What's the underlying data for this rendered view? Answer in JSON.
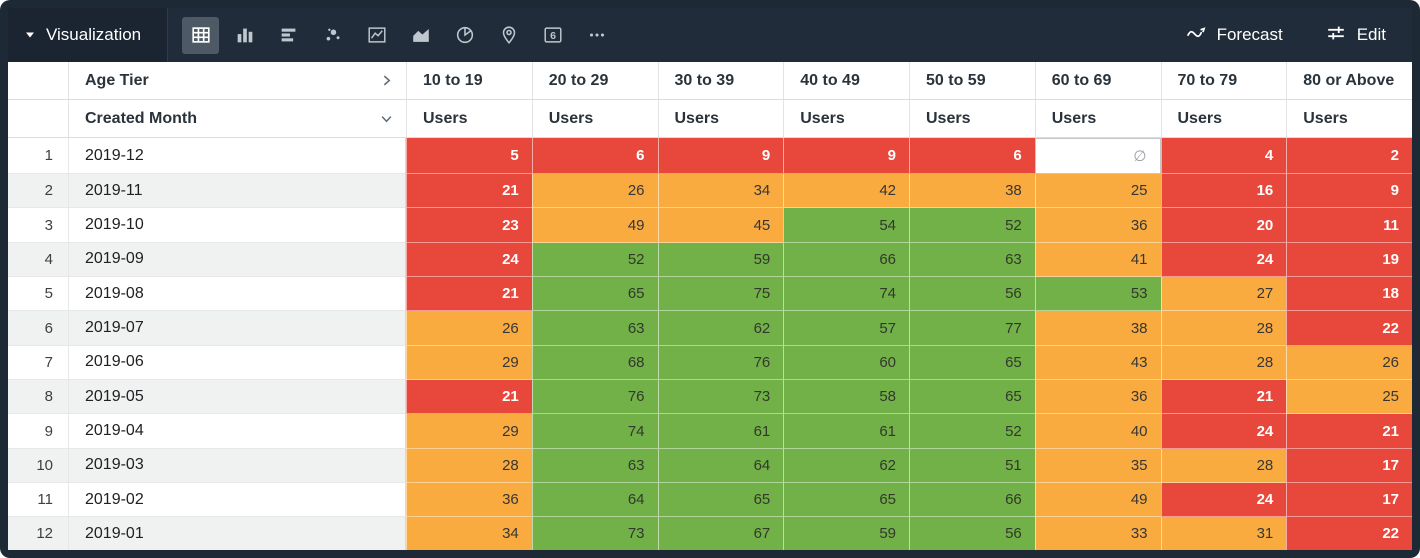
{
  "topbar": {
    "title": "Visualization",
    "forecast_label": "Forecast",
    "edit_label": "Edit",
    "single_value_glyph": "6",
    "viz_types": [
      "table",
      "column",
      "bar",
      "scatterplot",
      "line",
      "area",
      "pie",
      "map",
      "single-value",
      "more"
    ],
    "selected_viz": "table"
  },
  "colors": {
    "red": "#e8483b",
    "orange": "#f9ab40",
    "green": "#72b048",
    "topbar_bg": "#202c39",
    "selected_icon_bg": "#4d5965"
  },
  "table": {
    "pivot_field": "Age Tier",
    "dimension": "Created Month",
    "measure_label": "Users",
    "null_symbol": "∅",
    "pivot_columns": [
      "10 to 19",
      "20 to 29",
      "30 to 39",
      "40 to 49",
      "50 to 59",
      "60 to 69",
      "70 to 79",
      "80 or Above"
    ],
    "rows": [
      {
        "index": 1,
        "month": "2019-12",
        "values": [
          5,
          6,
          9,
          9,
          6,
          null,
          4,
          2
        ],
        "colors": [
          "r",
          "r",
          "r",
          "r",
          "r",
          "n",
          "r",
          "r"
        ]
      },
      {
        "index": 2,
        "month": "2019-11",
        "values": [
          21,
          26,
          34,
          42,
          38,
          25,
          16,
          9
        ],
        "colors": [
          "r",
          "o",
          "o",
          "o",
          "o",
          "o",
          "r",
          "r"
        ]
      },
      {
        "index": 3,
        "month": "2019-10",
        "values": [
          23,
          49,
          45,
          54,
          52,
          36,
          20,
          11
        ],
        "colors": [
          "r",
          "o",
          "o",
          "g",
          "g",
          "o",
          "r",
          "r"
        ]
      },
      {
        "index": 4,
        "month": "2019-09",
        "values": [
          24,
          52,
          59,
          66,
          63,
          41,
          24,
          19
        ],
        "colors": [
          "r",
          "g",
          "g",
          "g",
          "g",
          "o",
          "r",
          "r"
        ]
      },
      {
        "index": 5,
        "month": "2019-08",
        "values": [
          21,
          65,
          75,
          74,
          56,
          53,
          27,
          18
        ],
        "colors": [
          "r",
          "g",
          "g",
          "g",
          "g",
          "g",
          "o",
          "r"
        ]
      },
      {
        "index": 6,
        "month": "2019-07",
        "values": [
          26,
          63,
          62,
          57,
          77,
          38,
          28,
          22
        ],
        "colors": [
          "o",
          "g",
          "g",
          "g",
          "g",
          "o",
          "o",
          "r"
        ]
      },
      {
        "index": 7,
        "month": "2019-06",
        "values": [
          29,
          68,
          76,
          60,
          65,
          43,
          28,
          26
        ],
        "colors": [
          "o",
          "g",
          "g",
          "g",
          "g",
          "o",
          "o",
          "o"
        ]
      },
      {
        "index": 8,
        "month": "2019-05",
        "values": [
          21,
          76,
          73,
          58,
          65,
          36,
          21,
          25
        ],
        "colors": [
          "r",
          "g",
          "g",
          "g",
          "g",
          "o",
          "r",
          "o"
        ]
      },
      {
        "index": 9,
        "month": "2019-04",
        "values": [
          29,
          74,
          61,
          61,
          52,
          40,
          24,
          21
        ],
        "colors": [
          "o",
          "g",
          "g",
          "g",
          "g",
          "o",
          "r",
          "r"
        ]
      },
      {
        "index": 10,
        "month": "2019-03",
        "values": [
          28,
          63,
          64,
          62,
          51,
          35,
          28,
          17
        ],
        "colors": [
          "o",
          "g",
          "g",
          "g",
          "g",
          "o",
          "o",
          "r"
        ]
      },
      {
        "index": 11,
        "month": "2019-02",
        "values": [
          36,
          64,
          65,
          65,
          66,
          49,
          24,
          17
        ],
        "colors": [
          "o",
          "g",
          "g",
          "g",
          "g",
          "o",
          "r",
          "r"
        ]
      },
      {
        "index": 12,
        "month": "2019-01",
        "values": [
          34,
          73,
          67,
          59,
          56,
          33,
          31,
          22
        ],
        "colors": [
          "o",
          "g",
          "g",
          "g",
          "g",
          "o",
          "o",
          "r"
        ]
      }
    ]
  }
}
